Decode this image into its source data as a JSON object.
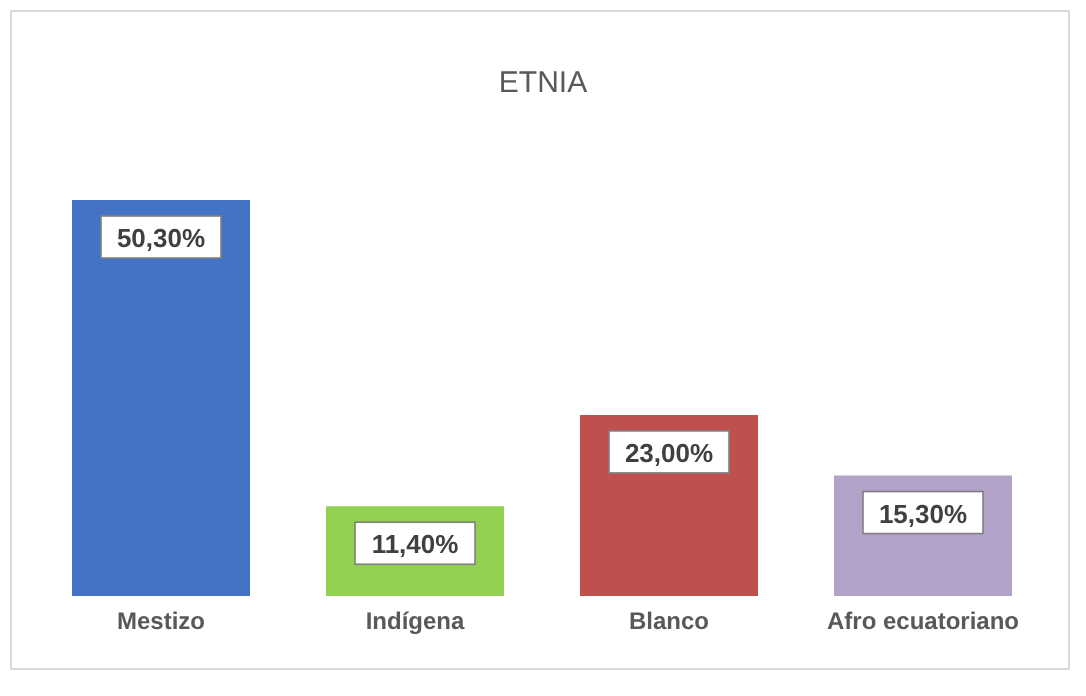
{
  "chart_data": {
    "type": "bar",
    "title": "ETNIA",
    "categories": [
      "Mestizo",
      "Indígena",
      "Blanco",
      "Afro ecuatoriano"
    ],
    "values": [
      50.3,
      11.4,
      23.0,
      15.3
    ],
    "colors": [
      "#4472c4",
      "#92d050",
      "#c0504d",
      "#b3a2c7"
    ],
    "value_labels": [
      "50,30%",
      "11,40%",
      "23,00%",
      "15,30%"
    ],
    "tick_labels": "x"
  }
}
